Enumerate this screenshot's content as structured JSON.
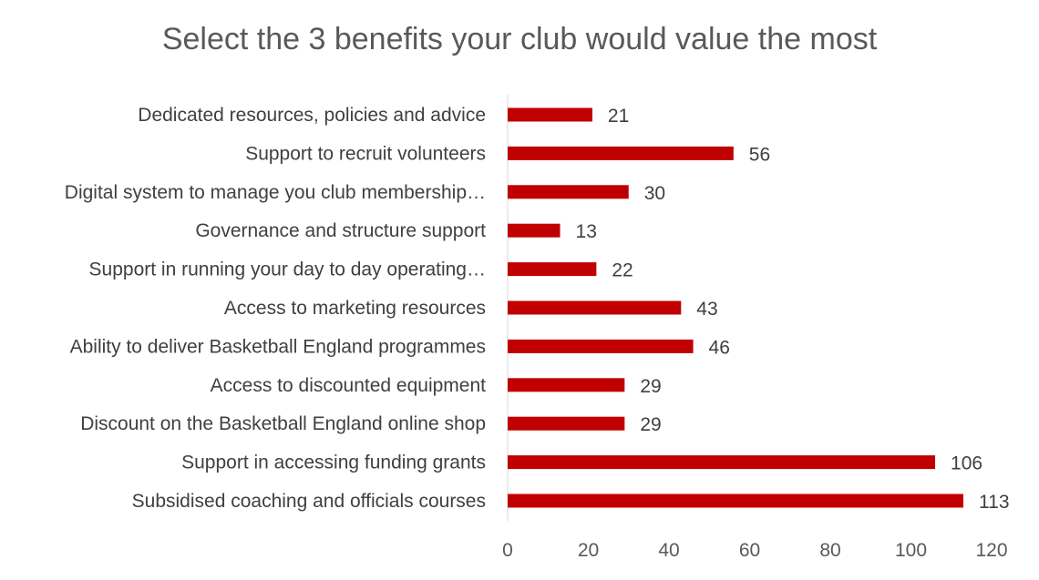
{
  "chart_data": {
    "type": "bar",
    "orientation": "horizontal",
    "title": "Select the 3 benefits your club would value the most",
    "categories": [
      "Dedicated resources, policies and advice",
      "Support to recruit volunteers",
      "Digital system to manage you club membership…",
      "Governance and structure support",
      "Support in running your day to day operating…",
      "Access to marketing resources",
      "Ability to deliver Basketball England programmes",
      "Access to discounted equipment",
      "Discount on the Basketball England online shop",
      "Support in accessing funding grants",
      "Subsidised coaching and officials courses"
    ],
    "values": [
      21,
      56,
      30,
      13,
      22,
      43,
      46,
      29,
      29,
      106,
      113
    ],
    "xlim": [
      0,
      120
    ],
    "xticks": [
      0,
      20,
      40,
      60,
      80,
      100,
      120
    ],
    "xlabel": "",
    "ylabel": "",
    "grid": false,
    "legend": "none",
    "bar_color": "#C00000"
  }
}
